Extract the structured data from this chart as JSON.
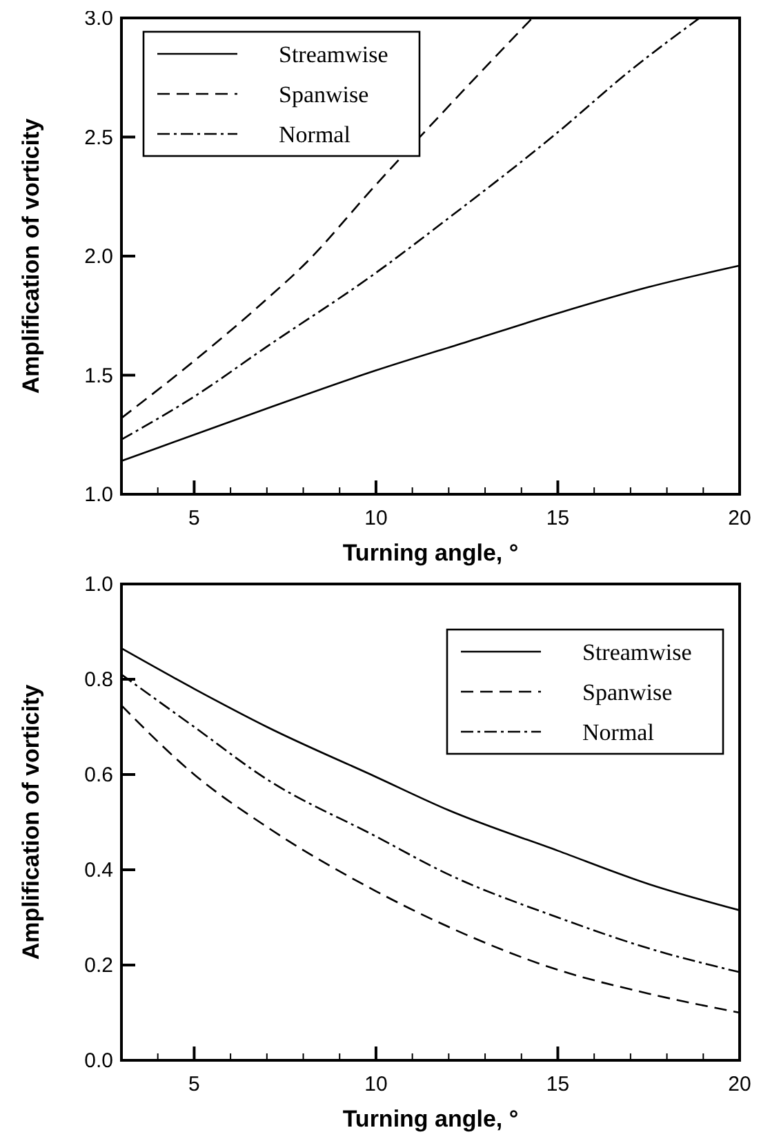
{
  "chart_data": [
    {
      "type": "line",
      "xlabel": "Turning angle, °",
      "ylabel": "Amplification of vorticity",
      "xlim": [
        3,
        20
      ],
      "ylim": [
        1,
        3
      ],
      "xticks": [
        {
          "value": 4,
          "label": null
        },
        5,
        {
          "value": 6,
          "label": null
        },
        {
          "value": 7,
          "label": null
        },
        {
          "value": 8,
          "label": null
        },
        {
          "value": 9,
          "label": null
        },
        10,
        {
          "value": 11,
          "label": null
        },
        {
          "value": 12,
          "label": null
        },
        {
          "value": 13,
          "label": null
        },
        {
          "value": 14,
          "label": null
        },
        15,
        {
          "value": 16,
          "label": null
        },
        {
          "value": 17,
          "label": null
        },
        {
          "value": 18,
          "label": null
        },
        {
          "value": 19,
          "label": null
        },
        20
      ],
      "yticks": [
        {
          "value": 1,
          "label": "1.0"
        },
        1.5,
        {
          "value": 2,
          "label": "2.0"
        },
        2.5,
        {
          "value": 3,
          "label": "3.0"
        }
      ],
      "legend": "top left",
      "grid": false,
      "marker": "none",
      "series": [
        {
          "name": "Streamwise",
          "color": "#000000",
          "line_style": "solid",
          "x": [
            3,
            5,
            7,
            10,
            12.5,
            15,
            17.5,
            20
          ],
          "values": [
            1.14,
            1.25,
            1.36,
            1.52,
            1.64,
            1.76,
            1.87,
            1.96
          ]
        },
        {
          "name": "Spanwise",
          "color": "#000000",
          "line_style": "dashed",
          "x": [
            3,
            5,
            7,
            8,
            10,
            12,
            14.3
          ],
          "values": [
            1.32,
            1.56,
            1.82,
            1.96,
            2.3,
            2.63,
            3.0
          ]
        },
        {
          "name": "Normal",
          "color": "#000000",
          "line_style": "dashdot",
          "x": [
            3,
            5,
            7,
            10,
            12,
            15,
            17,
            18.9
          ],
          "values": [
            1.23,
            1.41,
            1.62,
            1.93,
            2.16,
            2.52,
            2.78,
            3.0
          ]
        }
      ]
    },
    {
      "type": "line",
      "xlabel": "Turning angle, °",
      "ylabel": "Amplification of vorticity",
      "xlim": [
        3,
        20
      ],
      "ylim": [
        0,
        1
      ],
      "xticks": [
        {
          "value": 4,
          "label": null
        },
        5,
        {
          "value": 6,
          "label": null
        },
        {
          "value": 7,
          "label": null
        },
        {
          "value": 8,
          "label": null
        },
        {
          "value": 9,
          "label": null
        },
        10,
        {
          "value": 11,
          "label": null
        },
        {
          "value": 12,
          "label": null
        },
        {
          "value": 13,
          "label": null
        },
        {
          "value": 14,
          "label": null
        },
        15,
        {
          "value": 16,
          "label": null
        },
        {
          "value": 17,
          "label": null
        },
        {
          "value": 18,
          "label": null
        },
        {
          "value": 19,
          "label": null
        },
        20
      ],
      "yticks": [
        {
          "value": 0,
          "label": "0.0"
        },
        0.2,
        0.4,
        0.6,
        0.8,
        {
          "value": 1,
          "label": "1.0"
        }
      ],
      "legend": "top right",
      "grid": false,
      "marker": "none",
      "series": [
        {
          "name": "Streamwise",
          "color": "#000000",
          "line_style": "solid",
          "x": [
            3,
            5,
            7,
            10,
            12,
            15,
            17.5,
            20
          ],
          "values": [
            0.865,
            0.78,
            0.7,
            0.595,
            0.525,
            0.44,
            0.37,
            0.315
          ]
        },
        {
          "name": "Spanwise",
          "color": "#000000",
          "line_style": "dashed",
          "x": [
            3,
            5,
            7,
            10,
            12,
            15,
            17.5,
            20
          ],
          "values": [
            0.745,
            0.6,
            0.49,
            0.355,
            0.28,
            0.19,
            0.14,
            0.1
          ]
        },
        {
          "name": "Normal",
          "color": "#000000",
          "line_style": "dashdot",
          "x": [
            3,
            5,
            7,
            10,
            12,
            15,
            17.5,
            20
          ],
          "values": [
            0.81,
            0.7,
            0.59,
            0.47,
            0.39,
            0.3,
            0.235,
            0.185
          ]
        }
      ]
    }
  ]
}
